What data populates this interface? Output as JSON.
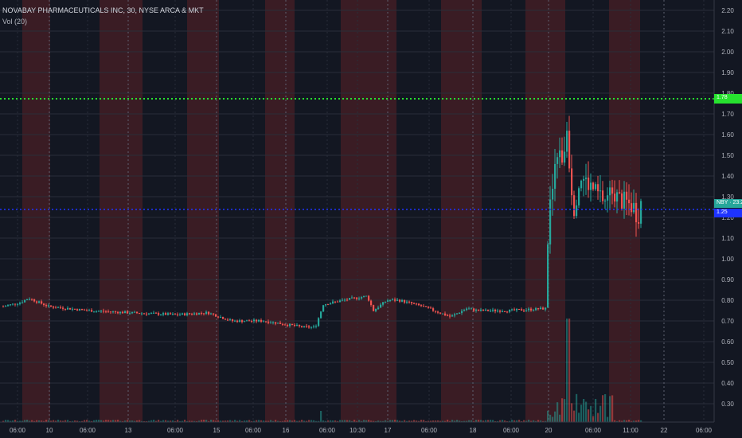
{
  "header": {
    "title": "NOVABAY PHARMACEUTICALS INC, 30, NYSE ARCA & MKT",
    "volume_label": "Vol (20)"
  },
  "colors": {
    "background": "#131722",
    "up": "#26a69a",
    "down": "#ef5350",
    "session_shade": "#3a1c24",
    "grid": "#2a2e39",
    "green_line": "#27e22f",
    "blue_line": "#1e33ff"
  },
  "price_scale": {
    "labels": [
      "2.20",
      "2.10",
      "2.00",
      "1.90",
      "1.80",
      "1.70",
      "1.60",
      "1.50",
      "1.40",
      "1.30",
      "1.20",
      "1.10",
      "1.00",
      "0.90",
      "0.80",
      "0.70",
      "0.60",
      "0.50",
      "0.40",
      "0.30"
    ],
    "min": 0.265,
    "max": 2.22
  },
  "time_axis": {
    "labels": [
      "06:00",
      "10",
      "06:00",
      "13",
      "06:00",
      "15",
      "06:00",
      "16",
      "06:00",
      "10:30",
      "17",
      "06:00",
      "18",
      "06:00",
      "20",
      "06:00",
      "11:00",
      "22",
      "06:00"
    ]
  },
  "badges": {
    "symbol_price": "NBY · 23:22",
    "blue_line_price": "1.25",
    "green_line_price": "1.78"
  },
  "chart_data": {
    "type": "candlestick",
    "title": "NOVABAY PHARMACEUTICALS INC, 30, NYSE ARCA & MKT",
    "price_range": [
      0.265,
      2.22
    ],
    "horizontal_lines": [
      {
        "price": 1.78,
        "color": "#27e22f",
        "style": "dotted"
      },
      {
        "price": 1.25,
        "color": "#1e33ff",
        "style": "dotted"
      }
    ],
    "volume_indicator": "Vol (20)",
    "approx_close_path": [
      {
        "time": "start",
        "price": 0.77
      },
      {
        "time": "10",
        "price": 0.76
      },
      {
        "time": "13",
        "price": 0.74
      },
      {
        "time": "15",
        "price": 0.72
      },
      {
        "time": "16",
        "price": 0.69
      },
      {
        "time": "10:30",
        "price": 0.8
      },
      {
        "time": "17",
        "price": 0.79
      },
      {
        "time": "18",
        "price": 0.75
      },
      {
        "time": "20",
        "price": 1.27
      },
      {
        "time": "20 peak",
        "price": 1.76
      },
      {
        "time": "11:00",
        "price": 1.28
      }
    ]
  }
}
